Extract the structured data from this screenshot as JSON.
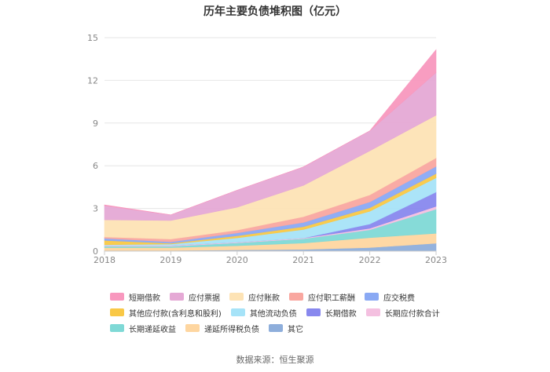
{
  "chart_data": {
    "type": "area",
    "title": "历年主要负债堆积图（亿元）",
    "xlabel": "",
    "ylabel": "",
    "categories": [
      "2018",
      "2019",
      "2020",
      "2021",
      "2022",
      "2023"
    ],
    "y_ticks": [
      "0",
      "3",
      "6",
      "9",
      "12",
      "15"
    ],
    "ylim": [
      0,
      15
    ],
    "stacked": true,
    "grid": true,
    "legend_position": "bottom",
    "series": [
      {
        "name": "其它",
        "color": "#8eaedb",
        "values": [
          0.05,
          0.05,
          0.08,
          0.12,
          0.25,
          0.55
        ]
      },
      {
        "name": "递延所得税负债",
        "color": "#fed6a0",
        "values": [
          0.2,
          0.2,
          0.3,
          0.45,
          0.7,
          0.7
        ]
      },
      {
        "name": "长期递延收益",
        "color": "#7fd9d6",
        "values": [
          0.1,
          0.1,
          0.2,
          0.3,
          0.55,
          1.7
        ]
      },
      {
        "name": "长期应付款合计",
        "color": "#f4c0e0",
        "values": [
          0.05,
          0.05,
          0.05,
          0.05,
          0.1,
          0.2
        ]
      },
      {
        "name": "长期借款",
        "color": "#8888ee",
        "values": [
          0,
          0,
          0,
          0,
          0.3,
          1.0
        ]
      },
      {
        "name": "其他流动负债",
        "color": "#a6e3f8",
        "values": [
          0.05,
          0.1,
          0.3,
          0.6,
          0.9,
          1.0
        ]
      },
      {
        "name": "其他应付款(含利息和股利)",
        "color": "#f9c846",
        "values": [
          0.3,
          0.05,
          0.15,
          0.2,
          0.25,
          0.3
        ]
      },
      {
        "name": "应交税费",
        "color": "#8aa9f4",
        "values": [
          0.15,
          0.1,
          0.2,
          0.3,
          0.4,
          0.5
        ]
      },
      {
        "name": "应付职工薪酬",
        "color": "#f9a7a0",
        "values": [
          0.1,
          0.2,
          0.2,
          0.4,
          0.5,
          0.6
        ]
      },
      {
        "name": "应付账款",
        "color": "#fde3b5",
        "values": [
          1.2,
          1.3,
          1.6,
          2.2,
          3.1,
          3.0
        ]
      },
      {
        "name": "应付票据",
        "color": "#e5a9d5",
        "values": [
          1.0,
          0.4,
          1.2,
          1.3,
          1.4,
          3.0
        ]
      },
      {
        "name": "短期借款",
        "color": "#f898be",
        "values": [
          0.05,
          0,
          0,
          0,
          0,
          1.6
        ]
      }
    ],
    "legend": [
      [
        "短期借款",
        "应付票据",
        "应付账款",
        "应付职工薪酬",
        "应交税费"
      ],
      [
        "其他应付款(含利息和股利)",
        "其他流动负债",
        "长期借款",
        "长期应付款合计"
      ],
      [
        "长期递延收益",
        "递延所得税负债",
        "其它"
      ]
    ]
  },
  "source_text": "数据来源：恒生聚源"
}
